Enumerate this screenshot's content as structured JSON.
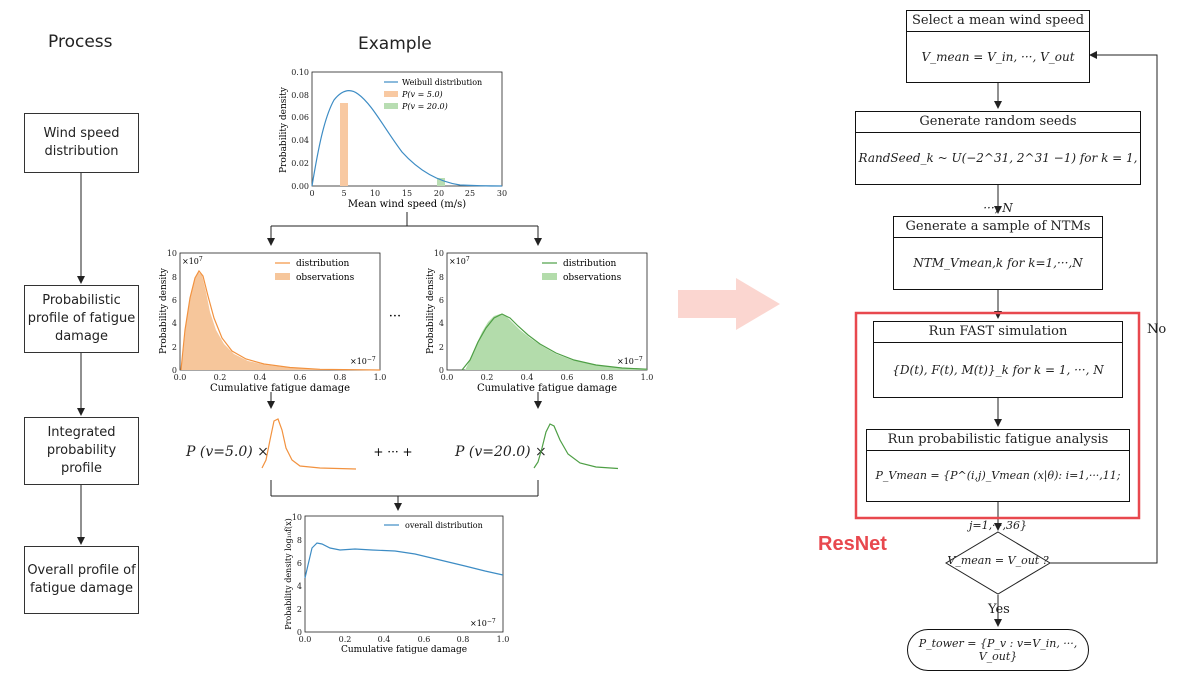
{
  "process": {
    "header": "Process",
    "boxes": [
      "Wind speed distribution",
      "Probabilistic profile of fatigue damage",
      "Integrated probability profile",
      "Overall profile of fatigue damage"
    ]
  },
  "example": {
    "header": "Example",
    "weibull_chart": {
      "ylabel": "Probability density",
      "xlabel": "Mean wind speed (m/s)",
      "legend": [
        "Weibull distribution",
        "P(v = 5.0)",
        "P(v = 20.0)"
      ],
      "yticks": [
        "0.00",
        "0.02",
        "0.04",
        "0.06",
        "0.08",
        "0.10"
      ],
      "xticks": [
        "0",
        "5",
        "10",
        "15",
        "20",
        "25",
        "30"
      ]
    },
    "dist_chart_1": {
      "ylabel": "Probability density",
      "xlabel": "Cumulative fatigue damage",
      "legend": [
        "distribution",
        "observations"
      ],
      "yexp": "×10",
      "yexp_power": "7",
      "xexp": "×10",
      "xexp_power": "−7",
      "yticks": [
        "0",
        "2",
        "4",
        "6",
        "8",
        "10"
      ],
      "xticks": [
        "0.0",
        "0.2",
        "0.4",
        "0.6",
        "0.8",
        "1.0"
      ]
    },
    "dist_chart_2": {
      "ylabel": "Probability density",
      "xlabel": "Cumulative fatigue damage",
      "legend": [
        "distribution",
        "observations"
      ],
      "yexp": "×10",
      "yexp_power": "7",
      "xexp": "×10",
      "xexp_power": "−7",
      "yticks": [
        "0",
        "2",
        "4",
        "6",
        "8",
        "10"
      ],
      "xticks": [
        "0.0",
        "0.2",
        "0.4",
        "0.6",
        "0.8",
        "1.0"
      ]
    },
    "ellipsis": "···",
    "sum_term_1": "P (v=5.0) ×",
    "sum_middle": "+ ··· +",
    "sum_term_2": "P (v=20.0) ×",
    "overall_chart": {
      "ylabel": "Probability density log₁₀f(x)",
      "xlabel": "Cumulative fatigue damage",
      "legend": [
        "overall distribution"
      ],
      "xexp": "×10",
      "xexp_power": "−7",
      "yticks": [
        "0",
        "2",
        "4",
        "6",
        "8",
        "10"
      ],
      "xticks": [
        "0.0",
        "0.2",
        "0.4",
        "0.6",
        "0.8",
        "1.0"
      ]
    }
  },
  "flow": {
    "box1_title": "Select a mean wind speed",
    "box1_formula": "V_mean = V_in, ···, V_out",
    "box2_title": "Generate random seeds",
    "box2_formula": "RandSeed_k ~ U(−2^31, 2^31 −1) for k = 1, ···, N",
    "box3_title": "Generate a sample of NTMs",
    "box3_formula": "NTM_Vmean,k for k=1,···,N",
    "box4_title": "Run FAST simulation",
    "box4_formula": "{D(t), F(t), M(t)}_k for k = 1, ···, N",
    "box5_title": "Run probabilistic fatigue analysis",
    "box5_formula": "P_Vmean = {P^(i,j)_Vmean (x|θ): i=1,···,11; j=1,···,36}",
    "decision": "V_mean = V_out ?",
    "final": "P_tower = {P_v : v=V_in, ···, V_out}",
    "no_label": "No",
    "yes_label": "Yes",
    "resnet_label": "ResNet",
    "resnet_color": "#e8484e"
  }
}
